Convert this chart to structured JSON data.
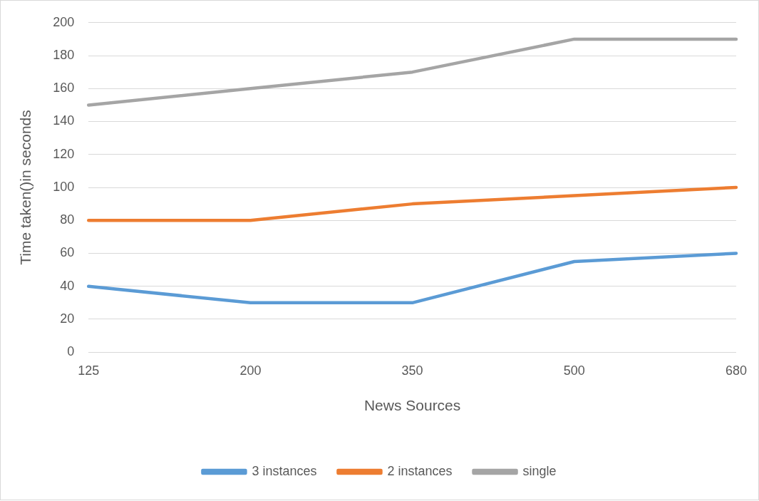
{
  "chart_data": {
    "type": "line",
    "xlabel": "News Sources",
    "ylabel": "Time taken()in seconds",
    "categories": [
      "125",
      "200",
      "350",
      "500",
      "680"
    ],
    "series": [
      {
        "name": "3 instances",
        "color": "#5b9bd5",
        "values": [
          40,
          30,
          30,
          55,
          60
        ]
      },
      {
        "name": "2 instances",
        "color": "#ed7d31",
        "values": [
          80,
          80,
          90,
          95,
          100
        ]
      },
      {
        "name": "single",
        "color": "#a5a5a5",
        "values": [
          150,
          160,
          170,
          190,
          190
        ]
      }
    ],
    "ylim": [
      0,
      200
    ],
    "yticks": [
      0,
      20,
      40,
      60,
      80,
      100,
      120,
      140,
      160,
      180,
      200
    ],
    "grid": "y",
    "legend": "bottom",
    "marker": "none",
    "line_style": "solid"
  }
}
